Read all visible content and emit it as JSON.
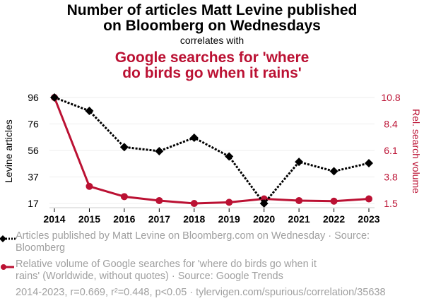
{
  "title_line1": "Number of articles Matt Levine published",
  "title_line2": "on Bloomberg on Wednesdays",
  "subtitle": "correlates with",
  "title2_line1": "Google searches for 'where",
  "title2_line2": "do birds go when it rains'",
  "colors": {
    "series1": "#000000",
    "series2": "#bb1133",
    "grid": "#eeeeee",
    "legend_text": "#a0a0a0"
  },
  "legend": {
    "series1_line1": "Articles published by Matt Levine on Bloomberg.com on Wednesday · Source:",
    "series1_line2": "Bloomberg",
    "series2_line1": "Relative volume of Google searches for 'where do birds go when it",
    "series2_line2": "rains' (Worldwide, without quotes) · Source: Google Trends"
  },
  "footer": "2014-2023, r=0.669, r²=0.448, p<0.05 · tylervigen.com/spurious/correlation/35638",
  "chart_data": {
    "type": "line",
    "title": "Number of articles Matt Levine published on Bloomberg on Wednesdays correlates with Google searches for 'where do birds go when it rains'",
    "x": [
      "2014",
      "2015",
      "2016",
      "2017",
      "2018",
      "2019",
      "2020",
      "2021",
      "2022",
      "2023"
    ],
    "xlabel": "",
    "ylabel_left": "Levine articles",
    "ylabel_right": "Rel. search volume",
    "yticks_left": [
      "17",
      "37",
      "56",
      "76",
      "96"
    ],
    "yticks_right": [
      "1.5",
      "3.8",
      "6.1",
      "8.4",
      "10.8"
    ],
    "ylim_left": [
      17,
      96
    ],
    "ylim_right": [
      1.5,
      10.8
    ],
    "grid": true,
    "legend_position": "bottom",
    "series": [
      {
        "name": "Articles published by Matt Levine on Bloomberg.com on Wednesday",
        "axis": "left",
        "style": "dotted",
        "marker": "diamond",
        "values": [
          96,
          86,
          59,
          56,
          66,
          52,
          17,
          48,
          41,
          47
        ]
      },
      {
        "name": "Relative volume of Google searches for 'where do birds go when it rains'",
        "axis": "right",
        "style": "solid",
        "marker": "circle",
        "values": [
          10.8,
          3.0,
          2.1,
          1.75,
          1.5,
          1.6,
          1.9,
          1.75,
          1.7,
          1.9
        ]
      }
    ]
  }
}
